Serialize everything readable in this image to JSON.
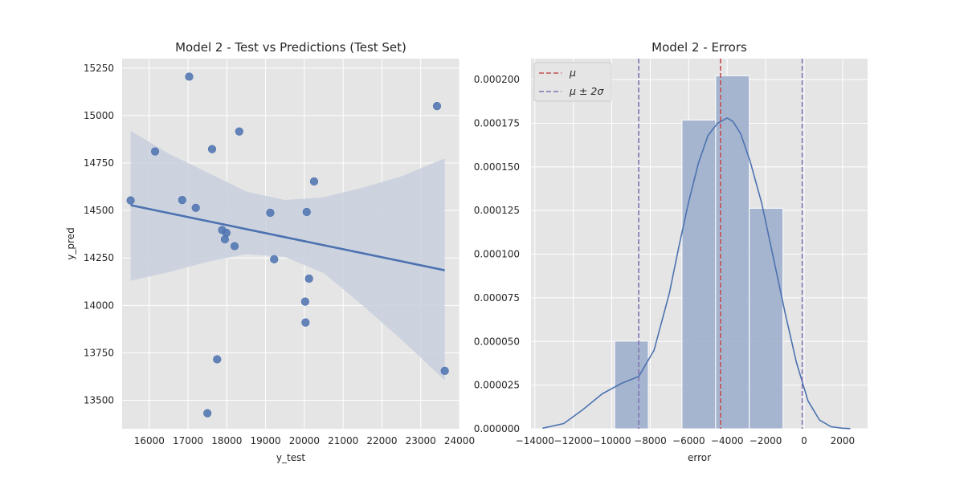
{
  "chart_data": [
    {
      "type": "scatter",
      "title": "Model 2 - Test vs Predictions (Test Set)",
      "xlabel": "y_test",
      "ylabel": "y_pred",
      "xlim": [
        15300,
        24000
      ],
      "ylim": [
        13350,
        15300
      ],
      "xticks": [
        16000,
        17000,
        18000,
        19000,
        20000,
        21000,
        22000,
        23000,
        24000
      ],
      "yticks": [
        13500,
        13750,
        14000,
        14250,
        14500,
        14750,
        15000,
        15250
      ],
      "grid": true,
      "points": [
        {
          "x": 15520,
          "y": 14553
        },
        {
          "x": 16150,
          "y": 14811
        },
        {
          "x": 16850,
          "y": 14555
        },
        {
          "x": 17030,
          "y": 15205
        },
        {
          "x": 17200,
          "y": 14514
        },
        {
          "x": 17500,
          "y": 13432
        },
        {
          "x": 17620,
          "y": 14823
        },
        {
          "x": 17750,
          "y": 13716
        },
        {
          "x": 17880,
          "y": 14397
        },
        {
          "x": 17950,
          "y": 14348
        },
        {
          "x": 17990,
          "y": 14382
        },
        {
          "x": 18200,
          "y": 14312
        },
        {
          "x": 18320,
          "y": 14916
        },
        {
          "x": 19120,
          "y": 14488
        },
        {
          "x": 19220,
          "y": 14243
        },
        {
          "x": 20020,
          "y": 14020
        },
        {
          "x": 20030,
          "y": 13910
        },
        {
          "x": 20060,
          "y": 14492
        },
        {
          "x": 20120,
          "y": 14141
        },
        {
          "x": 20250,
          "y": 14653
        },
        {
          "x": 23420,
          "y": 15050
        },
        {
          "x": 23620,
          "y": 13655
        }
      ],
      "regression": {
        "x": [
          15520,
          23620
        ],
        "y": [
          14528,
          14185
        ]
      },
      "confidence_band": {
        "x": [
          15520,
          16500,
          17500,
          18500,
          19500,
          20500,
          21500,
          22500,
          23620
        ],
        "lower": [
          14130,
          14175,
          14230,
          14270,
          14255,
          14170,
          14000,
          13820,
          13605
        ],
        "upper": [
          14920,
          14800,
          14700,
          14600,
          14555,
          14570,
          14620,
          14680,
          14775
        ]
      },
      "colors": {
        "points": "#4c72b0",
        "line": "#4c72b0",
        "band": "#c8d0de"
      }
    },
    {
      "type": "bar",
      "title": "Model 2  - Errors",
      "xlabel": "error",
      "ylabel": "",
      "xlim": [
        -14200,
        3300
      ],
      "ylim": [
        0,
        0.000212
      ],
      "xticks": [
        -14000,
        -12000,
        -10000,
        -8000,
        -6000,
        -4000,
        -2000,
        0,
        2000
      ],
      "xtick_labels": [
        "−14000",
        "−12000",
        "−10000",
        "−8000",
        "−6000",
        "−4000",
        "−2000",
        "0",
        "2000"
      ],
      "yticks": [
        0,
        2.5e-05,
        5e-05,
        7.5e-05,
        0.0001,
        0.000125,
        0.00015,
        0.000175,
        0.0002
      ],
      "ytick_labels": [
        "0.000000",
        "0.000025",
        "0.000050",
        "0.000075",
        "0.000100",
        "0.000125",
        "0.000150",
        "0.000175",
        "0.000200"
      ],
      "grid": true,
      "bins": [
        {
          "x0": -9850,
          "x1": -8100,
          "value": 5.02e-05
        },
        {
          "x0": -8100,
          "x1": -6350,
          "value": 0
        },
        {
          "x0": -6350,
          "x1": -4600,
          "value": 0.0001768
        },
        {
          "x0": -4600,
          "x1": -2850,
          "value": 0.0002022
        },
        {
          "x0": -2850,
          "x1": -1100,
          "value": 0.0001263
        }
      ],
      "kde": {
        "x": [
          -13600,
          -12500,
          -11500,
          -10500,
          -9500,
          -8600,
          -7800,
          -7000,
          -6500,
          -6000,
          -5500,
          -5000,
          -4500,
          -4000,
          -3700,
          -3300,
          -2800,
          -2200,
          -1600,
          -1000,
          -400,
          200,
          800,
          1400,
          2000,
          2400
        ],
        "y": [
          3e-07,
          3e-06,
          1.1e-05,
          2e-05,
          2.6e-05,
          3e-05,
          4.5e-05,
          7.8e-05,
          0.000105,
          0.00013,
          0.000152,
          0.000168,
          0.000175,
          0.000178,
          0.000176,
          0.000169,
          0.000153,
          0.000129,
          9.8e-05,
          6.7e-05,
          3.8e-05,
          1.6e-05,
          5e-06,
          1.2e-06,
          3e-07,
          1e-07
        ]
      },
      "vlines": {
        "mu": -4350,
        "mu_minus_2sigma": -8600,
        "mu_plus_2sigma": -100
      },
      "legend": {
        "placement": "top-left",
        "entries": [
          "μ",
          "μ ± 2σ"
        ]
      },
      "colors": {
        "bars": "#9eafcc",
        "kde": "#4c72b0",
        "mu": "#c44e52",
        "sigma": "#8172b3"
      }
    }
  ]
}
